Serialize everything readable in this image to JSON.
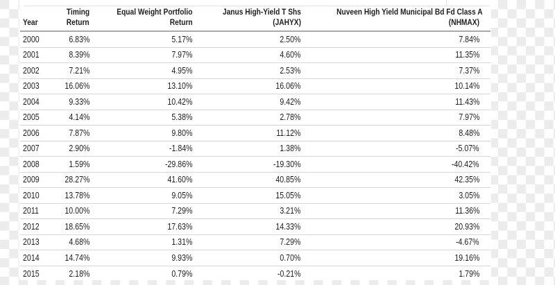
{
  "chart_data": {
    "type": "table",
    "columns": [
      {
        "top": "",
        "bottom": "Year"
      },
      {
        "top": "Timing",
        "bottom": "Return"
      },
      {
        "top": "Equal Weight Portfolio",
        "bottom": "Return"
      },
      {
        "top": "Janus High-Yield T Shs",
        "bottom": "(JAHYX)"
      },
      {
        "top": "Nuveen High Yield Municipal Bd Fd Class A",
        "bottom": "(NHMAX)"
      }
    ],
    "rows": [
      [
        "2000",
        "6.83%",
        "5.17%",
        "2.50%",
        "7.84%"
      ],
      [
        "2001",
        "8.39%",
        "7.97%",
        "4.60%",
        "11.35%"
      ],
      [
        "2002",
        "7.21%",
        "4.95%",
        "2.53%",
        "7.37%"
      ],
      [
        "2003",
        "16.06%",
        "13.10%",
        "16.06%",
        "10.14%"
      ],
      [
        "2004",
        "9.33%",
        "10.42%",
        "9.42%",
        "11.43%"
      ],
      [
        "2005",
        "4.14%",
        "5.38%",
        "2.78%",
        "7.97%"
      ],
      [
        "2006",
        "7.87%",
        "9.80%",
        "11.12%",
        "8.48%"
      ],
      [
        "2007",
        "2.90%",
        "-1.84%",
        "1.38%",
        "-5.07%"
      ],
      [
        "2008",
        "1.59%",
        "-29.86%",
        "-19.30%",
        "-40.42%"
      ],
      [
        "2009",
        "28.27%",
        "41.60%",
        "40.85%",
        "42.35%"
      ],
      [
        "2010",
        "13.78%",
        "9.05%",
        "15.05%",
        "3.05%"
      ],
      [
        "2011",
        "10.00%",
        "7.29%",
        "3.21%",
        "11.36%"
      ],
      [
        "2012",
        "18.65%",
        "17.63%",
        "14.33%",
        "20.93%"
      ],
      [
        "2013",
        "4.68%",
        "1.31%",
        "7.29%",
        "-4.67%"
      ],
      [
        "2014",
        "14.74%",
        "9.93%",
        "0.70%",
        "19.16%"
      ],
      [
        "2015",
        "2.18%",
        "0.79%",
        "-0.21%",
        "1.79%"
      ]
    ],
    "colors": {
      "text": "#1e1e1e",
      "header_border": "#a9a9a9",
      "row_border": "#d6d6d6",
      "top_divider": "#e0e0e0",
      "panel_background": "#ffffff",
      "checker_gray": "#ececec"
    }
  }
}
